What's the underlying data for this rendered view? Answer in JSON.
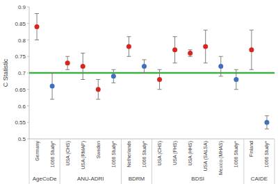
{
  "chart_data": {
    "type": "scatter",
    "y_label": "C Statistic",
    "categories": [
      "Germany",
      "1066 Study*",
      "USA (CHS)",
      "USA (RMAP)",
      "Sweden",
      "1066 Study*",
      "Netherlands",
      "1066 Study*",
      "USA (CHS)",
      "USA (FHS)",
      "USA (HHS)",
      "USA (SALSA)",
      "Mexico (MHAS)",
      "1066 Study*",
      "Finland",
      "1066 Study*"
    ],
    "groups": [
      {
        "label": "AgeCoDe",
        "count": 2
      },
      {
        "label": "ANU-ADRI",
        "count": 4
      },
      {
        "label": "BDRM",
        "count": 2
      },
      {
        "label": "BDSI",
        "count": 6
      },
      {
        "label": "CAIDE",
        "count": 2
      }
    ],
    "values": [
      0.84,
      0.66,
      0.73,
      0.72,
      0.65,
      0.69,
      0.78,
      0.72,
      0.68,
      0.77,
      0.76,
      0.78,
      0.72,
      0.68,
      0.77,
      0.55
    ],
    "lower": [
      0.8,
      0.62,
      0.71,
      0.68,
      0.62,
      0.67,
      0.75,
      0.7,
      0.65,
      0.73,
      0.75,
      0.73,
      0.69,
      0.65,
      0.71,
      0.53
    ],
    "upper": [
      0.88,
      0.7,
      0.75,
      0.76,
      0.68,
      0.71,
      0.81,
      0.74,
      0.71,
      0.81,
      0.77,
      0.83,
      0.75,
      0.71,
      0.83,
      0.57
    ],
    "colors": [
      "#d7261e",
      "#3f6fbf",
      "#d7261e",
      "#d7261e",
      "#d7261e",
      "#3f6fbf",
      "#d7261e",
      "#3f6fbf",
      "#d7261e",
      "#d7261e",
      "#d7261e",
      "#d7261e",
      "#3f6fbf",
      "#3f6fbf",
      "#d7261e",
      "#3f6fbf"
    ],
    "marker": "circle",
    "reference_line": {
      "value": 0.7,
      "color": "#3cb043"
    },
    "ylim": [
      0.5,
      0.9
    ],
    "yticks": [
      0.5,
      0.55,
      0.6,
      0.65,
      0.7,
      0.75,
      0.8,
      0.85,
      0.9
    ],
    "grid": false
  }
}
